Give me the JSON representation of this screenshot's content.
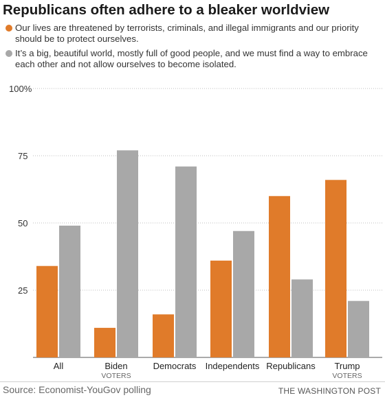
{
  "chart_data": {
    "type": "bar",
    "title": "Republicans often adhere to a bleaker worldview",
    "categories": [
      {
        "label": "All",
        "sublabel": ""
      },
      {
        "label": "Biden",
        "sublabel": "VOTERS"
      },
      {
        "label": "Democrats",
        "sublabel": ""
      },
      {
        "label": "Independents",
        "sublabel": ""
      },
      {
        "label": "Republicans",
        "sublabel": ""
      },
      {
        "label": "Trump",
        "sublabel": "VOTERS"
      }
    ],
    "series": [
      {
        "name": "Our lives are threatened by terrorists, criminals, and illegal immigrants and our priority should be to protect ourselves.",
        "color": "#e07b2a",
        "values": [
          34,
          11,
          16,
          36,
          60,
          66
        ]
      },
      {
        "name": "It’s a big, beautiful world, mostly full of good people, and we must find a way to embrace each other and not allow ourselves to become isolated.",
        "color": "#a8a8a8",
        "values": [
          49,
          77,
          71,
          47,
          29,
          21
        ]
      }
    ],
    "yticks": [
      "100%",
      "75",
      "50",
      "25"
    ],
    "ylim": [
      0,
      100
    ],
    "grid": true,
    "legend_position": "top-left"
  },
  "source": "Source: Economist-YouGov polling",
  "credit": "THE WASHINGTON POST"
}
